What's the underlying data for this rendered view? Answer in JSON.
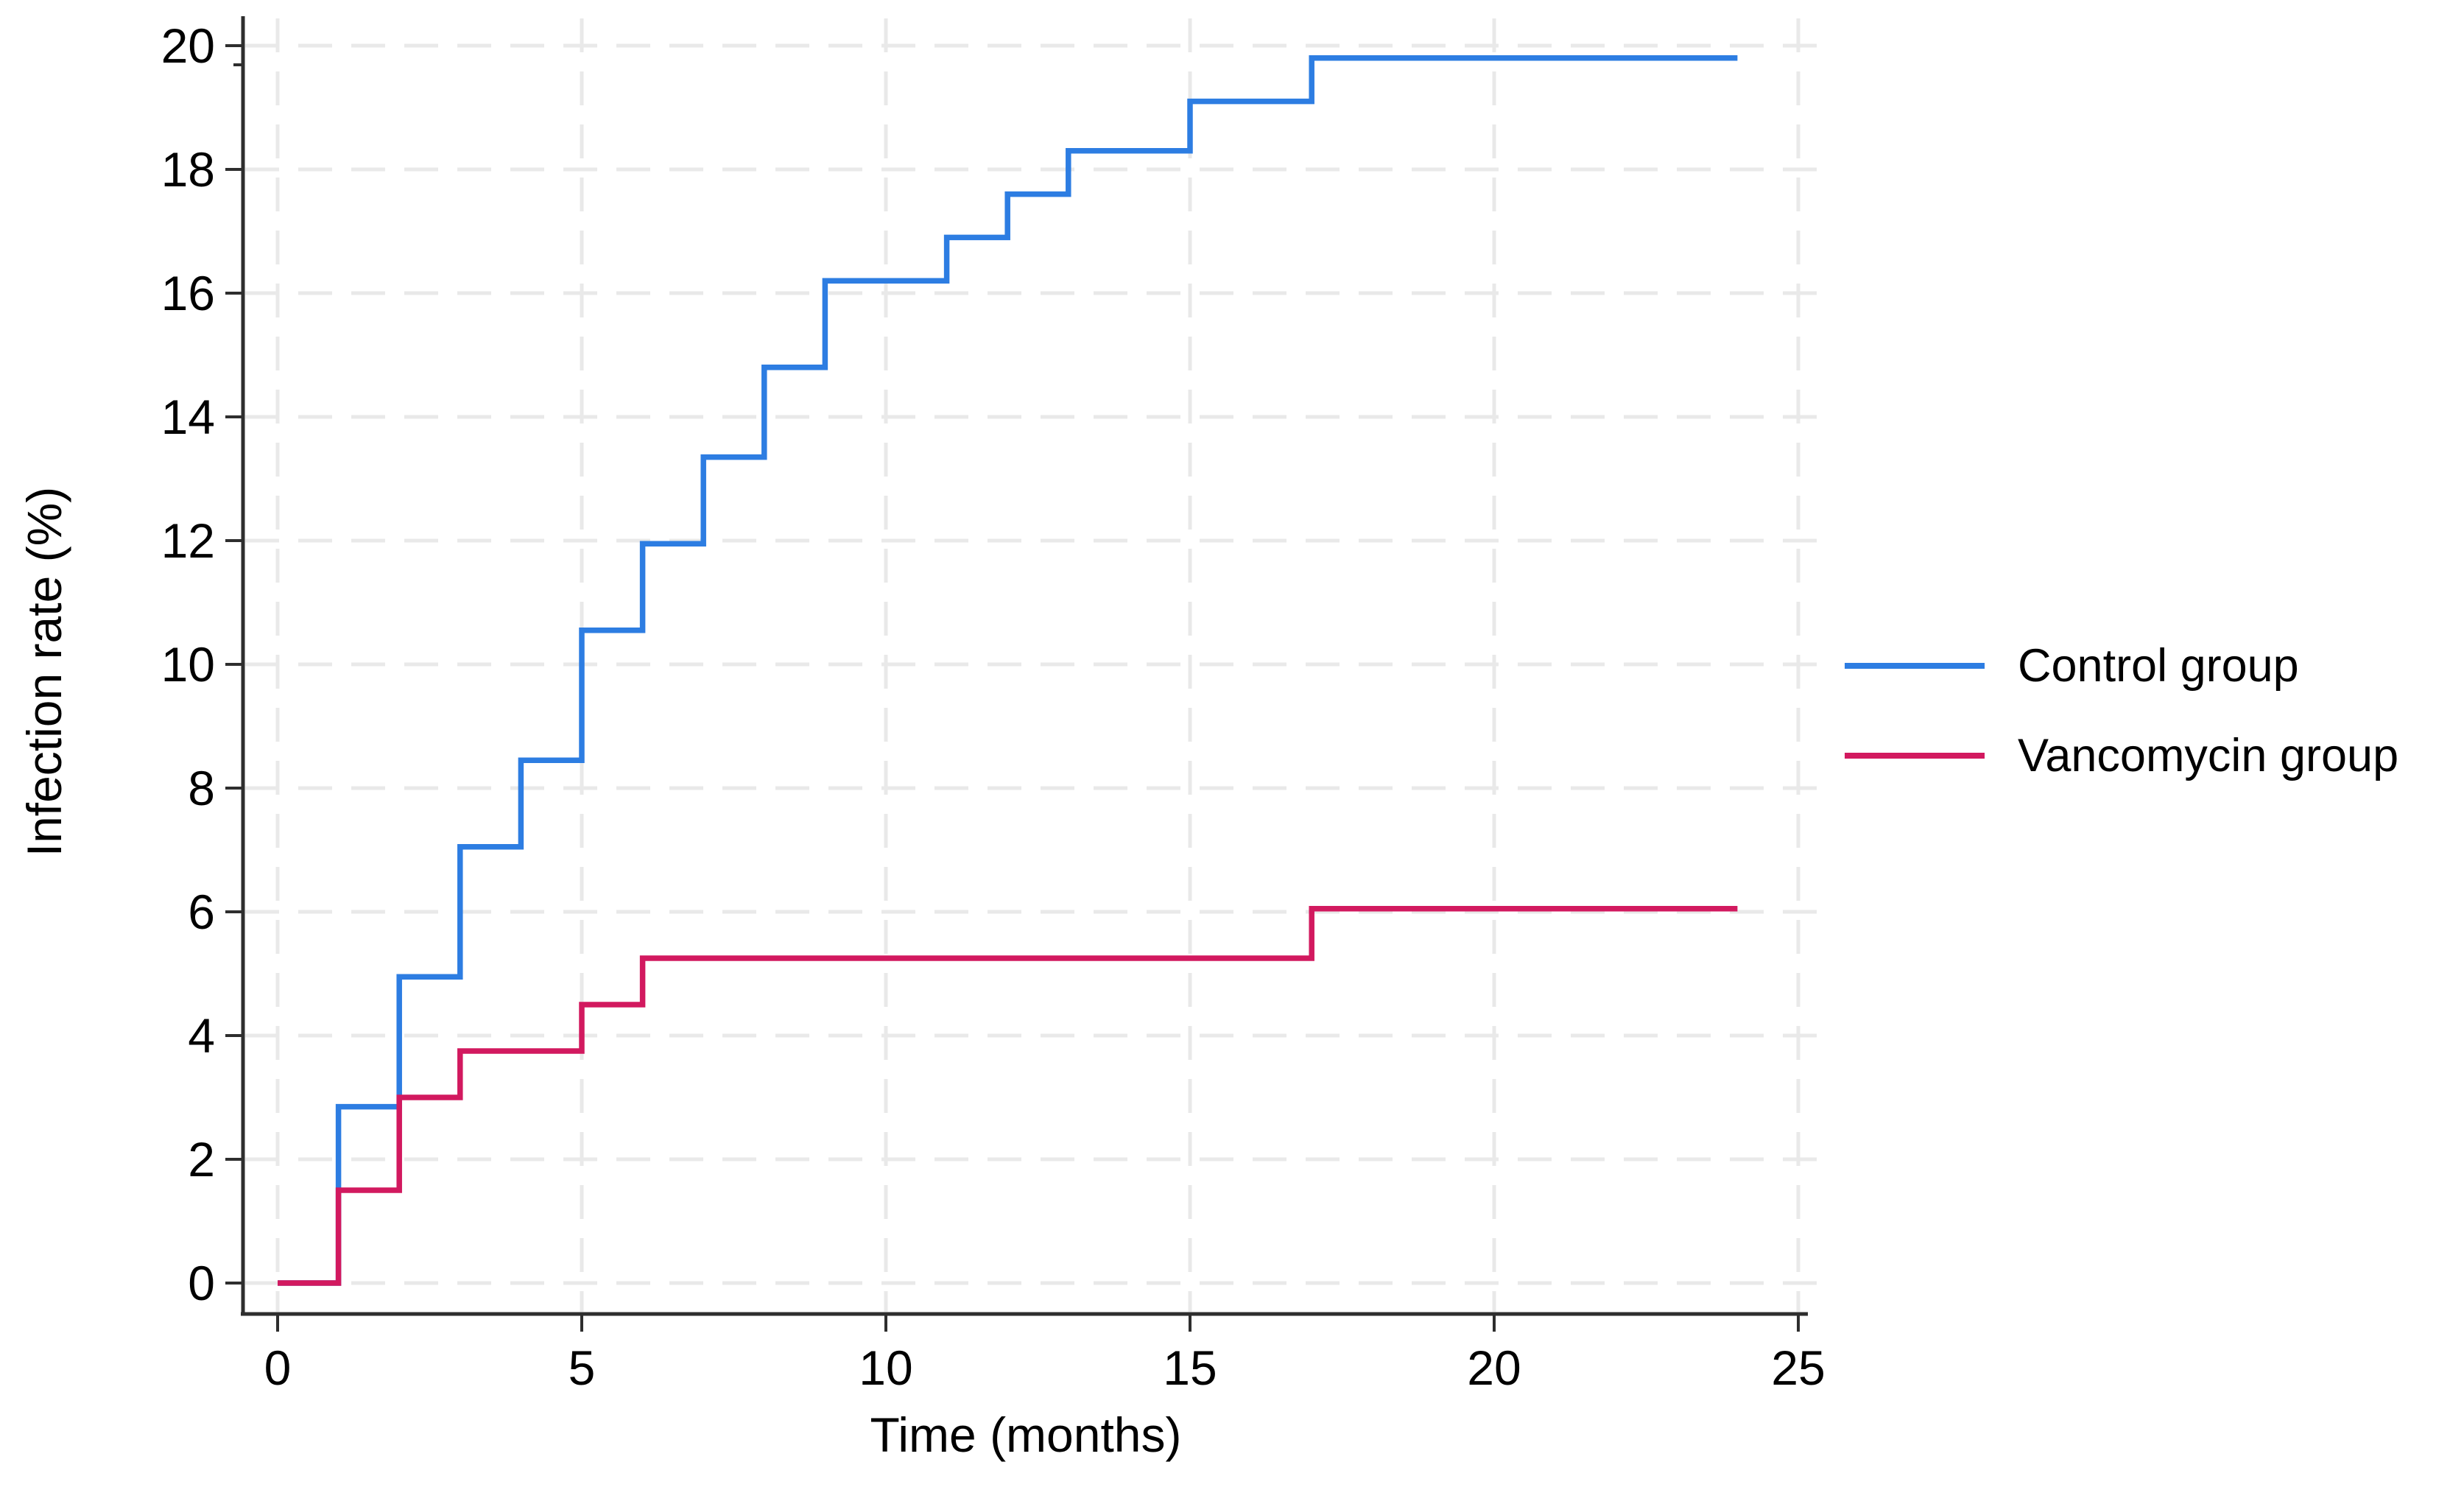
{
  "chart_data": {
    "type": "line",
    "subtype": "step-kaplan-meier-cumulative-incidence",
    "title": "",
    "xlabel": "Time (months)",
    "ylabel": "Infection rate (%)",
    "xlim": [
      0,
      25
    ],
    "ylim": [
      0,
      20
    ],
    "xticks": [
      0,
      5,
      10,
      15,
      20,
      25
    ],
    "yticks": [
      0,
      2,
      4,
      6,
      8,
      10,
      12,
      14,
      16,
      18,
      20
    ],
    "grid": "dashed gridlines at every tick, both axes",
    "legend_position": "right-outside",
    "series": [
      {
        "name": "Control group",
        "color": "#2d7de2",
        "points": [
          [
            0,
            0
          ],
          [
            1,
            0
          ],
          [
            1,
            2.85
          ],
          [
            2,
            2.85
          ],
          [
            2,
            4.95
          ],
          [
            3,
            4.95
          ],
          [
            3,
            7.05
          ],
          [
            4,
            7.05
          ],
          [
            4,
            8.45
          ],
          [
            5,
            8.45
          ],
          [
            5,
            10.55
          ],
          [
            6,
            10.55
          ],
          [
            6,
            11.95
          ],
          [
            7,
            11.95
          ],
          [
            7,
            13.35
          ],
          [
            8,
            13.35
          ],
          [
            8,
            14.8
          ],
          [
            9,
            14.8
          ],
          [
            9,
            16.2
          ],
          [
            11,
            16.2
          ],
          [
            11,
            16.9
          ],
          [
            12,
            16.9
          ],
          [
            12,
            17.6
          ],
          [
            13,
            17.6
          ],
          [
            13,
            18.3
          ],
          [
            15,
            18.3
          ],
          [
            15,
            19.1
          ],
          [
            17,
            19.1
          ],
          [
            17,
            19.8
          ],
          [
            24,
            19.8
          ]
        ]
      },
      {
        "name": "Vancomycin group",
        "color": "#d2195f",
        "points": [
          [
            0,
            0
          ],
          [
            1,
            0
          ],
          [
            1,
            1.5
          ],
          [
            2,
            1.5
          ],
          [
            2,
            3
          ],
          [
            3,
            3
          ],
          [
            3,
            3.75
          ],
          [
            5,
            3.75
          ],
          [
            5,
            4.5
          ],
          [
            6,
            4.5
          ],
          [
            6,
            5.25
          ],
          [
            17,
            5.25
          ],
          [
            17,
            6.05
          ],
          [
            24,
            6.05
          ]
        ]
      }
    ],
    "colors": {
      "control_line": "#2d7de2",
      "vancomycin_line": "#d2195f",
      "gridline": "#e9e9e9",
      "axis": "#2e2e2e",
      "text": "#000000",
      "background": "#ffffff"
    }
  }
}
